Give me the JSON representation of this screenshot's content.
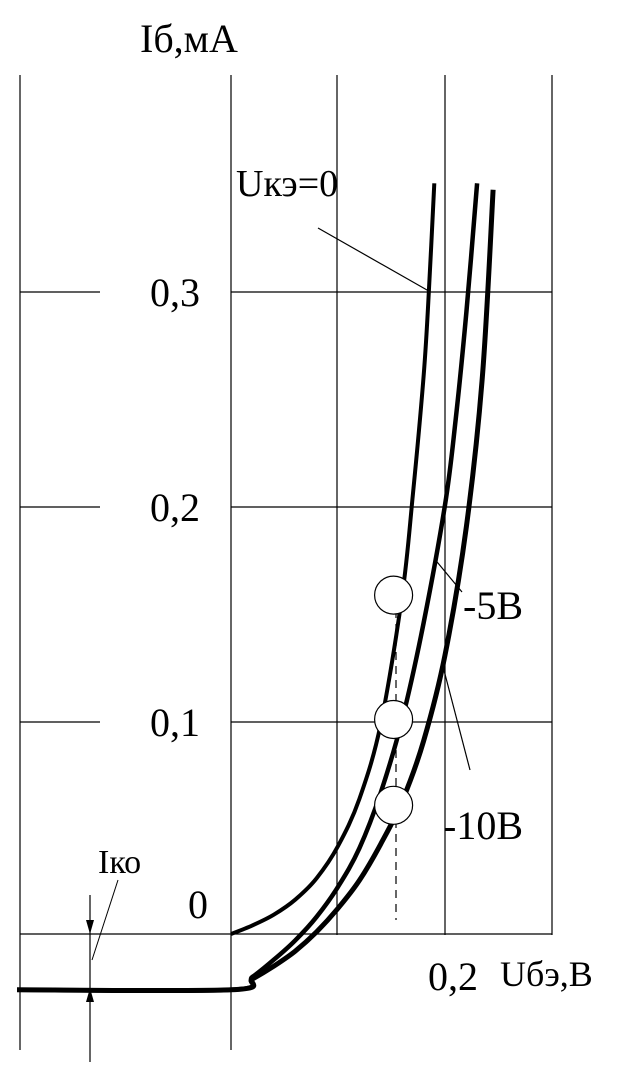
{
  "chart_data": {
    "type": "line",
    "ylabel": "Iб,мА",
    "xlabel": "Uбэ,В",
    "y_ticks": [
      {
        "value": 0.3,
        "label": "0,3"
      },
      {
        "value": 0.2,
        "label": "0,2"
      },
      {
        "value": 0.1,
        "label": "0,1"
      },
      {
        "value": 0,
        "label": "0"
      }
    ],
    "x_ticks": [
      {
        "value": 0.2,
        "label": "0,2"
      }
    ],
    "xlim": [
      -0.2,
      0.3
    ],
    "ylim": [
      -0.05,
      0.4
    ],
    "grid": true,
    "ico_label": "Iко",
    "ico_value": -0.026,
    "series": [
      {
        "name": "Uкэ=0",
        "x": [
          0,
          0.02,
          0.04,
          0.06,
          0.08,
          0.1,
          0.12,
          0.14,
          0.16,
          0.17,
          0.18,
          0.185,
          0.19
        ],
        "y": [
          0,
          0.004,
          0.009,
          0.016,
          0.026,
          0.041,
          0.063,
          0.098,
          0.158,
          0.205,
          0.26,
          0.3,
          0.35
        ]
      },
      {
        "name": "-5В",
        "x": [
          -0.2,
          0.0,
          0.02,
          0.04,
          0.06,
          0.08,
          0.1,
          0.12,
          0.14,
          0.16,
          0.18,
          0.2,
          0.21,
          0.22,
          0.23
        ],
        "y": [
          -0.026,
          -0.026,
          -0.02,
          -0.012,
          -0.003,
          0.008,
          0.022,
          0.04,
          0.066,
          0.1,
          0.145,
          0.2,
          0.24,
          0.29,
          0.35
        ]
      },
      {
        "name": "-10В",
        "x": [
          -0.2,
          0.0,
          0.02,
          0.04,
          0.06,
          0.08,
          0.1,
          0.12,
          0.14,
          0.16,
          0.18,
          0.2,
          0.22,
          0.235,
          0.245
        ],
        "y": [
          -0.026,
          -0.026,
          -0.021,
          -0.015,
          -0.008,
          0.001,
          0.012,
          0.025,
          0.042,
          0.062,
          0.09,
          0.13,
          0.19,
          0.26,
          0.347
        ]
      }
    ],
    "markers": [
      {
        "x": 0.152,
        "y": 0.158
      },
      {
        "x": 0.152,
        "y": 0.1
      },
      {
        "x": 0.152,
        "y": 0.06
      }
    ],
    "annotations": [
      {
        "text": "Uкэ=0",
        "series": 0
      },
      {
        "text": "-5В",
        "series": 1
      },
      {
        "text": "-10В",
        "series": 2
      }
    ]
  }
}
